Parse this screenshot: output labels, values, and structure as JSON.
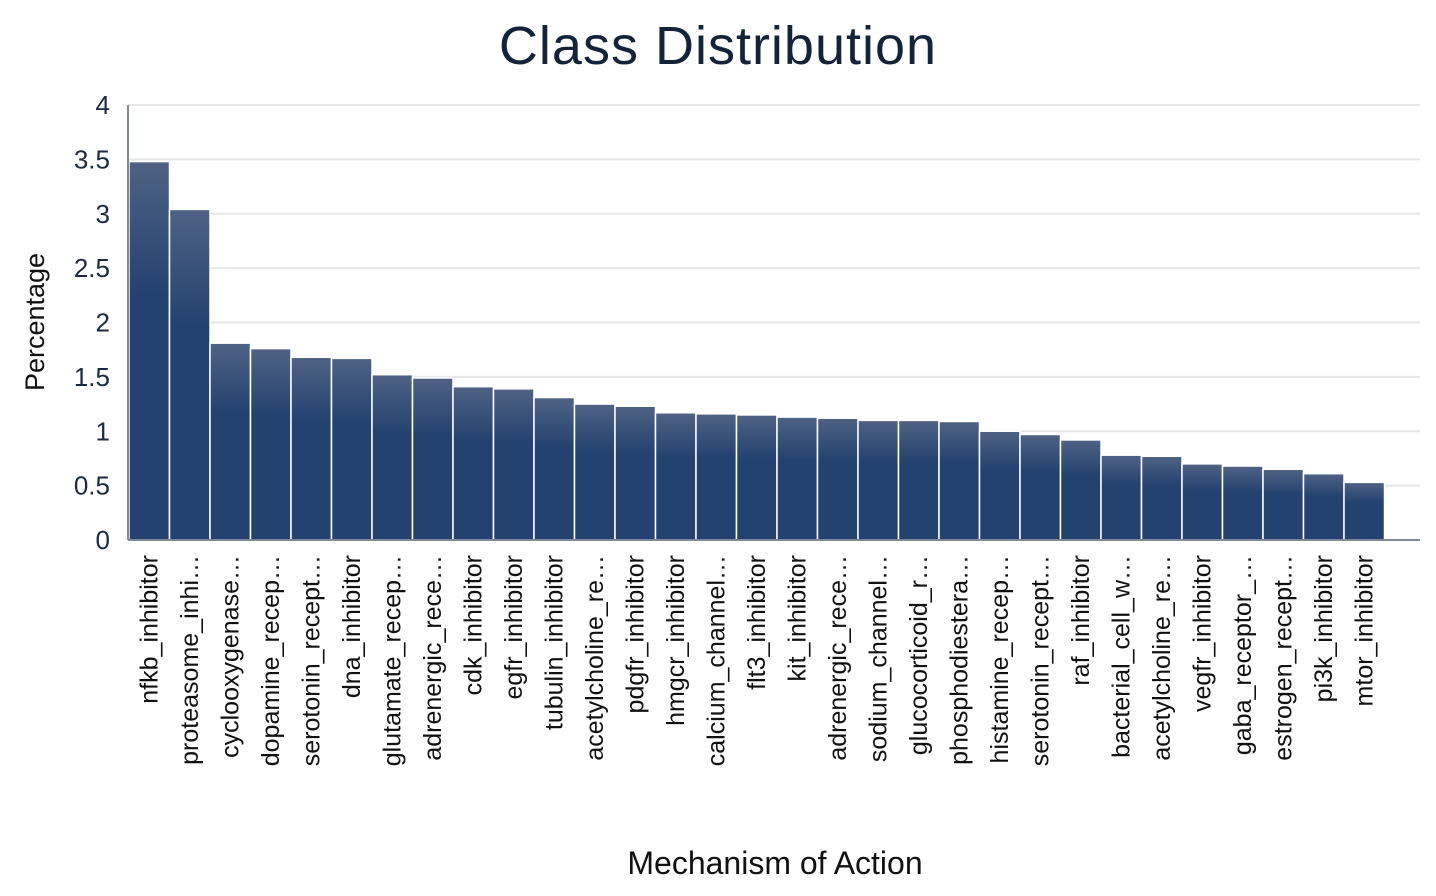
{
  "chart_data": {
    "type": "bar",
    "title": "Class Distribution",
    "xlabel": "Mechanism of Action",
    "ylabel": "Percentage",
    "ylim": [
      0,
      4
    ],
    "yticks": [
      "0",
      "0.5",
      "1",
      "1.5",
      "2",
      "2.5",
      "3",
      "3.5",
      "4"
    ],
    "grid": true,
    "colors": {
      "bar": "#24426f",
      "bar_top": "#4f6284",
      "grid": "#e6e6e6",
      "axis": "#7f8a99",
      "title": "#13243a"
    },
    "categories": [
      "nfkb_inhibitor",
      "proteasome_inhi…",
      "cyclooxygenase…",
      "dopamine_recep…",
      "serotonin_recept…",
      "dna_inhibitor",
      "glutamate_recep…",
      "adrenergic_rece…",
      "cdk_inhibitor",
      "egfr_inhibitor",
      "tubulin_inhibitor",
      "acetylcholine_re…",
      "pdgfr_inhibitor",
      "hmgcr_inhibitor",
      "calcium_channel…",
      "flt3_inhibitor",
      "kit_inhibitor",
      "adrenergic_rece…",
      "sodium_channel…",
      "glucocorticoid_r…",
      "phosphodiestera…",
      "histamine_recep…",
      "serotonin_recept…",
      "raf_inhibitor",
      "bacterial_cell_w…",
      "acetylcholine_re…",
      "vegfr_inhibitor",
      "gaba_receptor_…",
      "estrogen_recept…",
      "pi3k_inhibitor",
      "mtor_inhibitor"
    ],
    "values": [
      3.48,
      3.04,
      1.81,
      1.76,
      1.68,
      1.67,
      1.52,
      1.49,
      1.41,
      1.39,
      1.31,
      1.25,
      1.23,
      1.17,
      1.16,
      1.15,
      1.13,
      1.12,
      1.1,
      1.1,
      1.09,
      1.0,
      0.97,
      0.92,
      0.78,
      0.77,
      0.7,
      0.68,
      0.65,
      0.61,
      0.53
    ]
  }
}
